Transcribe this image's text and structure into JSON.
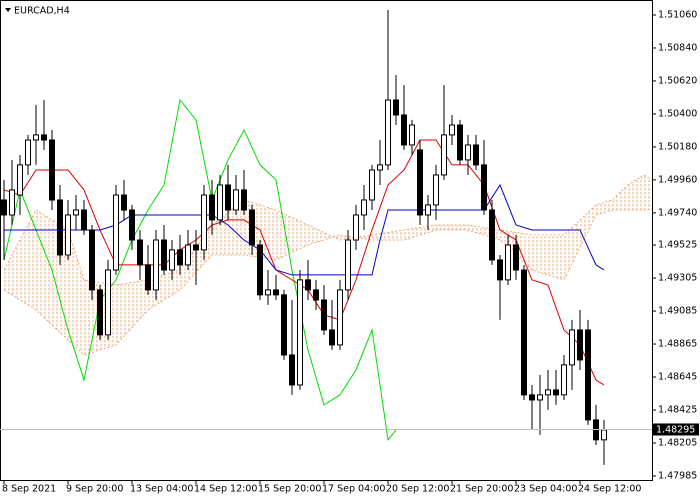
{
  "chart_data": {
    "type": "candlestick",
    "title": "EURCAD,H4",
    "xlim": [
      -0.5,
      81
    ],
    "ylim": [
      1.47958,
      1.5116
    ],
    "xticks": [
      {
        "value": 0,
        "label": "8 Sep 2021"
      },
      {
        "value": 8,
        "label": "9 Sep 20:00"
      },
      {
        "value": 16,
        "label": "13 Sep 04:00"
      },
      {
        "value": 24,
        "label": "14 Sep 12:00"
      },
      {
        "value": 32,
        "label": "15 Sep 20:00"
      },
      {
        "value": 40,
        "label": "17 Sep 04:00"
      },
      {
        "value": 48,
        "label": "20 Sep 12:00"
      },
      {
        "value": 56,
        "label": "21 Sep 20:00"
      },
      {
        "value": 64,
        "label": "23 Sep 04:00"
      },
      {
        "value": 72,
        "label": "24 Sep 12:00"
      }
    ],
    "yticks": [
      {
        "value": 1.5106,
        "label": "1.51060"
      },
      {
        "value": 1.5084,
        "label": "1.50840"
      },
      {
        "value": 1.5062,
        "label": "1.50620"
      },
      {
        "value": 1.504,
        "label": "1.50400"
      },
      {
        "value": 1.5018,
        "label": "1.50180"
      },
      {
        "value": 1.4996,
        "label": "1.49960"
      },
      {
        "value": 1.4974,
        "label": "1.49740"
      },
      1.49525,
      1.49305,
      1.49085,
      1.48865,
      1.48645,
      1.48425,
      1.48205,
      1.47985
    ],
    "current_price": 1.48295,
    "up_color": "#ffffff",
    "down_color": "#000000",
    "open": [
      1.49826,
      1.49726,
      1.49859,
      1.5006,
      1.50226,
      1.5026,
      1.50226,
      1.49826,
      1.49459,
      1.49726,
      1.49759,
      1.49626,
      1.49226,
      1.48926,
      1.49359,
      1.49859,
      1.49759,
      1.49559,
      1.49393,
      1.49226,
      1.49559,
      1.49359,
      1.49493,
      1.49393,
      1.49526,
      1.49493,
      1.49859,
      1.49693,
      1.49926,
      1.49759,
      1.49893,
      1.49759,
      1.49526,
      1.49193,
      1.49226,
      1.49193,
      1.48792,
      1.48592,
      1.49293,
      1.49226,
      1.49159,
      1.48959,
      1.48859,
      1.49226,
      1.49559,
      1.49726,
      1.49826,
      1.50026,
      1.5006,
      1.50493,
      1.50393,
      1.50193,
      1.5016,
      1.49726,
      1.49793,
      1.49993,
      1.5026,
      1.50326,
      1.50093,
      1.50193,
      1.5006,
      1.49759,
      1.49426,
      1.49293,
      1.49526,
      1.49359,
      1.48526,
      1.48492,
      1.48526,
      1.48559,
      1.48526,
      1.48726,
      1.48959,
      1.48959,
      1.48359,
      1.48226
    ],
    "high": [
      1.4996,
      1.50093,
      1.50126,
      1.5026,
      1.5046,
      1.50493,
      1.50293,
      1.49926,
      1.49826,
      1.49859,
      1.49826,
      1.49659,
      1.49259,
      1.49426,
      1.49926,
      1.4996,
      1.49793,
      1.49626,
      1.49526,
      1.49626,
      1.49659,
      1.49559,
      1.49593,
      1.49626,
      1.49626,
      1.49926,
      1.4996,
      1.49993,
      1.5006,
      1.49993,
      1.50026,
      1.49793,
      1.49559,
      1.49359,
      1.49326,
      1.49226,
      1.49159,
      1.49359,
      1.49426,
      1.49293,
      1.49259,
      1.49159,
      1.49293,
      1.49626,
      1.49793,
      1.49926,
      1.5006,
      1.50226,
      1.51093,
      1.5066,
      1.50593,
      1.5036,
      1.50226,
      1.49859,
      1.5006,
      1.50593,
      1.50393,
      1.5036,
      1.5026,
      1.5026,
      1.50226,
      1.49826,
      1.49459,
      1.49593,
      1.49593,
      1.49393,
      1.48592,
      1.48659,
      1.48692,
      1.48692,
      1.48792,
      1.49026,
      1.49092,
      1.49026,
      1.48459,
      1.48359
    ],
    "low": [
      1.49426,
      1.49659,
      1.49726,
      1.49993,
      1.5006,
      1.5016,
      1.49759,
      1.49393,
      1.49426,
      1.49626,
      1.49593,
      1.49159,
      1.48892,
      1.48892,
      1.49326,
      1.49693,
      1.49493,
      1.49293,
      1.49193,
      1.49159,
      1.49326,
      1.49293,
      1.49326,
      1.49359,
      1.49259,
      1.49426,
      1.49593,
      1.49659,
      1.49693,
      1.49726,
      1.49726,
      1.49459,
      1.49159,
      1.49126,
      1.49159,
      1.48759,
      1.48526,
      1.48559,
      1.49159,
      1.49092,
      1.48926,
      1.48826,
      1.48826,
      1.49159,
      1.49493,
      1.49626,
      1.49759,
      1.49926,
      1.50026,
      1.50326,
      1.5016,
      1.50126,
      1.49659,
      1.49626,
      1.49693,
      1.4996,
      1.50193,
      1.5006,
      1.49993,
      1.50026,
      1.49726,
      1.49393,
      1.49026,
      1.49259,
      1.49293,
      1.48492,
      1.48292,
      1.48259,
      1.48426,
      1.48459,
      1.48492,
      1.48559,
      1.48692,
      1.48326,
      1.48192,
      1.48059
    ],
    "close": [
      1.49726,
      1.49893,
      1.5006,
      1.50226,
      1.5026,
      1.50226,
      1.49826,
      1.49459,
      1.49726,
      1.49759,
      1.49626,
      1.49226,
      1.48926,
      1.49359,
      1.49859,
      1.49759,
      1.49559,
      1.49393,
      1.49226,
      1.49559,
      1.49359,
      1.49493,
      1.49393,
      1.49526,
      1.49493,
      1.49859,
      1.49693,
      1.49926,
      1.49759,
      1.49893,
      1.49759,
      1.49526,
      1.49193,
      1.49226,
      1.49193,
      1.48792,
      1.48592,
      1.49293,
      1.49226,
      1.49159,
      1.48959,
      1.48859,
      1.49226,
      1.49559,
      1.49726,
      1.49826,
      1.50026,
      1.5006,
      1.50493,
      1.50393,
      1.50193,
      1.50326,
      1.49726,
      1.49793,
      1.49993,
      1.5026,
      1.50326,
      1.50093,
      1.50193,
      1.5006,
      1.49759,
      1.49426,
      1.49293,
      1.49526,
      1.49359,
      1.48526,
      1.48492,
      1.48526,
      1.48559,
      1.48526,
      1.48726,
      1.48959,
      1.48759,
      1.48359,
      1.48226,
      1.48292
    ],
    "lines": [
      {
        "color": "#00dd00",
        "x": [
          0,
          2,
          4,
          6,
          8,
          10,
          12,
          14,
          16,
          18,
          20,
          22,
          24,
          26,
          28,
          30,
          32,
          34,
          36,
          38,
          40,
          42,
          44,
          46,
          48,
          49
        ],
        "values": [
          1.49426,
          1.49893,
          1.49626,
          1.49359,
          1.48959,
          1.48625,
          1.49159,
          1.49293,
          1.49559,
          1.49759,
          1.49926,
          1.50493,
          1.5036,
          1.49826,
          1.50093,
          1.50293,
          1.5006,
          1.4996,
          1.49359,
          1.48826,
          1.48459,
          1.48526,
          1.48692,
          1.48959,
          1.48226,
          1.48292
        ]
      },
      {
        "color": "#dd0000",
        "x": [
          0,
          2,
          4,
          6,
          8,
          10,
          12,
          14,
          16,
          18,
          20,
          22,
          24,
          26,
          28,
          30,
          32,
          34,
          36,
          38,
          40,
          42,
          44,
          46,
          48,
          50,
          52,
          54,
          56,
          58,
          60,
          62,
          64,
          66,
          68,
          70,
          72,
          74,
          75
        ],
        "values": [
          1.49893,
          1.49859,
          1.50026,
          1.50026,
          1.50026,
          1.49893,
          1.49626,
          1.49393,
          1.49393,
          1.49393,
          1.49393,
          1.49493,
          1.49559,
          1.49659,
          1.49693,
          1.49693,
          1.49626,
          1.49359,
          1.49293,
          1.49226,
          1.49059,
          1.49026,
          1.49293,
          1.49626,
          1.49926,
          1.50026,
          1.50226,
          1.50226,
          1.5006,
          1.5006,
          1.49926,
          1.49626,
          1.49559,
          1.49293,
          1.49259,
          1.48959,
          1.48859,
          1.48625,
          1.48592
        ]
      },
      {
        "color": "#0000cc",
        "x": [
          0,
          12,
          14,
          16,
          26,
          28,
          30,
          32,
          34,
          36,
          46,
          47,
          48,
          60,
          62,
          64,
          66,
          72,
          74,
          75
        ],
        "values": [
          1.49626,
          1.49626,
          1.49659,
          1.49726,
          1.49726,
          1.49659,
          1.49559,
          1.49493,
          1.49359,
          1.49326,
          1.49326,
          1.49559,
          1.49759,
          1.49759,
          1.49926,
          1.49659,
          1.49626,
          1.49626,
          1.49393,
          1.49359
        ]
      }
    ],
    "cloud": {
      "color": "#e8935a",
      "x": [
        0,
        4,
        8,
        10,
        14,
        18,
        22,
        26,
        30,
        34,
        38,
        42,
        46,
        50,
        54,
        58,
        62,
        66,
        70,
        74,
        76,
        78,
        80,
        81
      ],
      "span_a": [
        1.49359,
        1.49759,
        1.49626,
        1.49293,
        1.49259,
        1.49293,
        1.49359,
        1.49659,
        1.49826,
        1.49759,
        1.49659,
        1.49559,
        1.49593,
        1.49626,
        1.49659,
        1.49659,
        1.49626,
        1.49593,
        1.49593,
        1.49793,
        1.49826,
        1.49926,
        1.49993,
        1.4996
      ],
      "span_b": [
        1.49226,
        1.49092,
        1.48892,
        1.48792,
        1.48859,
        1.49092,
        1.49226,
        1.49459,
        1.49459,
        1.49426,
        1.49526,
        1.49593,
        1.49559,
        1.49559,
        1.49626,
        1.49626,
        1.49559,
        1.49359,
        1.49293,
        1.49726,
        1.49759,
        1.49759,
        1.49759,
        1.49759
      ]
    }
  }
}
